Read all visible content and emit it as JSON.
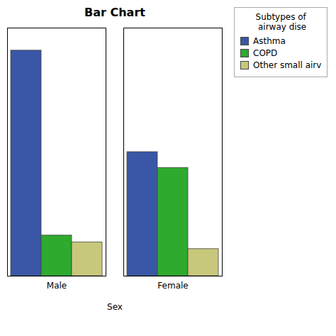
{
  "chart_data": {
    "type": "bar",
    "title": "Bar Chart",
    "xlabel": "Sex",
    "categories": [
      "Male",
      "Female"
    ],
    "series": [
      {
        "name": "Asthma",
        "color": "#3A57A7",
        "values": [
          100,
          55
        ]
      },
      {
        "name": "COPD",
        "color": "#2EAA2E",
        "values": [
          18,
          48
        ]
      },
      {
        "name": "Other small airv",
        "color": "#C8C87A",
        "values": [
          15,
          12
        ]
      }
    ],
    "legend_title": "Subtypes of\n airway dise",
    "legend": "upper right",
    "ylim": [
      0,
      110
    ],
    "tick_labels": "x",
    "grid": false
  }
}
